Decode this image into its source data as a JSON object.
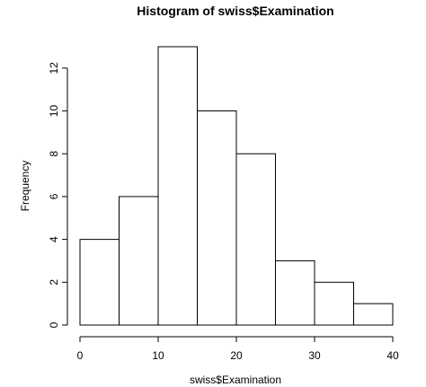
{
  "chart_data": {
    "type": "bar",
    "title": "Histogram of swiss$Examination",
    "xlabel": "swiss$Examination",
    "ylabel": "Frequency",
    "bins": [
      {
        "from": 0,
        "to": 5,
        "count": 4
      },
      {
        "from": 5,
        "to": 10,
        "count": 6
      },
      {
        "from": 10,
        "to": 15,
        "count": 13
      },
      {
        "from": 15,
        "to": 20,
        "count": 10
      },
      {
        "from": 20,
        "to": 25,
        "count": 8
      },
      {
        "from": 25,
        "to": 30,
        "count": 3
      },
      {
        "from": 30,
        "to": 35,
        "count": 2
      },
      {
        "from": 35,
        "to": 40,
        "count": 1
      }
    ],
    "xlim": [
      0,
      40
    ],
    "ylim": [
      0,
      13
    ],
    "x_ticks": [
      "0",
      "10",
      "20",
      "30",
      "40"
    ],
    "y_ticks": [
      "0",
      "2",
      "4",
      "6",
      "8",
      "10",
      "12"
    ],
    "grid": false,
    "legend": "none"
  }
}
